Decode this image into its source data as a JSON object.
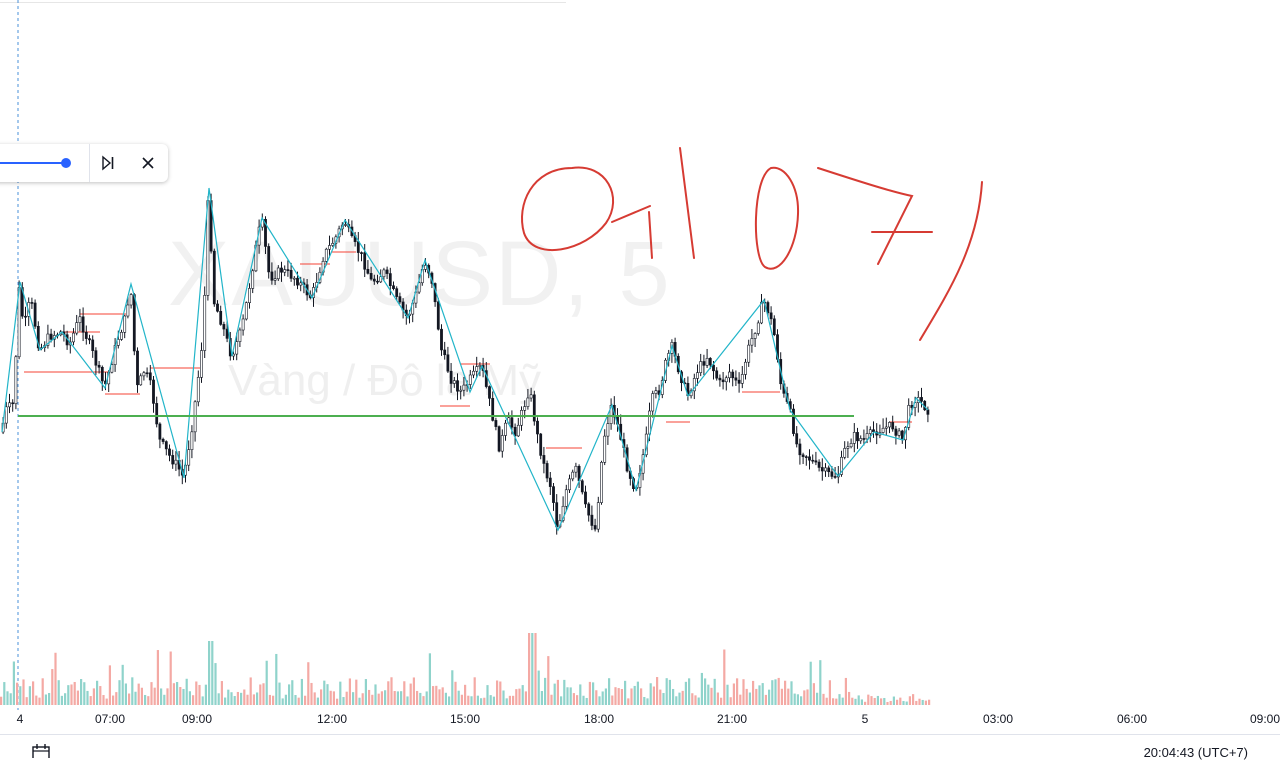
{
  "watermark": {
    "symbol": "XAUUSD, 5",
    "name": "Vàng / Đô la Mỹ"
  },
  "handwriting": "04107",
  "toolbar": {
    "skip_icon": "step-forward-icon",
    "close_icon": "close-icon"
  },
  "footer": {
    "clock": "20:04:43 (UTC+7)",
    "calendar_icon": "calendar-icon"
  },
  "colors": {
    "candle": "#131722",
    "zigzag": "#22b5c9",
    "level": "#4caf50",
    "swing": "#f44336",
    "vol_up": "#8fd3cb",
    "vol_down": "#f4a9a4",
    "handwriting": "#d63b33",
    "accent": "#2962ff"
  },
  "chart_data": {
    "type": "candlestick",
    "timeframe": "5",
    "x_tick_labels": [
      "4",
      "07:00",
      "09:00",
      "12:00",
      "15:00",
      "18:00",
      "21:00",
      "5",
      "03:00",
      "06:00",
      "09:00"
    ],
    "horizontal_level": "green",
    "series": [
      {
        "name": "price",
        "type": "candlestick"
      },
      {
        "name": "zigzag",
        "type": "line"
      },
      {
        "name": "volume",
        "type": "bar"
      }
    ],
    "grid": false
  }
}
